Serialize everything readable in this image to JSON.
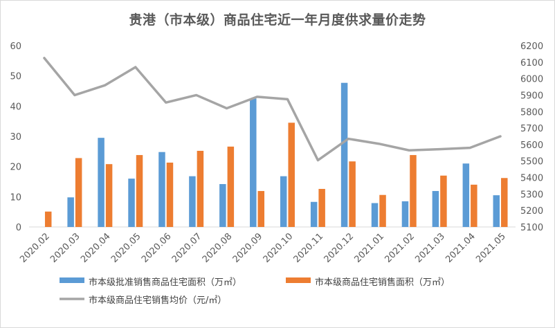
{
  "chart_data": {
    "type": "bar",
    "title": "贵港（市本级）商品住宅近一年月度供求量价走势",
    "categories": [
      "2020.02",
      "2020.03",
      "2020.04",
      "2020.05",
      "2020.06",
      "2020.07",
      "2020.08",
      "2020.09",
      "2020.10",
      "2020.11",
      "2020.12",
      "2021.01",
      "2021.02",
      "2021.03",
      "2021.04",
      "2021.05"
    ],
    "series": [
      {
        "name": "市本级批准销售商品住宅面积（万㎡）",
        "kind": "bar",
        "axis": "left",
        "color": "#5B9BD5",
        "values": [
          0,
          9.8,
          29.5,
          16,
          24.8,
          16.8,
          14.2,
          42.5,
          16.8,
          8.3,
          47.7,
          7.9,
          8.5,
          11.9,
          21,
          10.5
        ]
      },
      {
        "name": "市本级商品住宅销售面积（万㎡）",
        "kind": "bar",
        "axis": "left",
        "color": "#ED7D31",
        "values": [
          5.1,
          22.8,
          20.8,
          23.8,
          21.3,
          25.2,
          26.6,
          11.9,
          34.5,
          12.6,
          21.7,
          10.6,
          23.8,
          17,
          14,
          16.2
        ]
      },
      {
        "name": "市本级商品住宅销售均价（元/㎡）",
        "kind": "line",
        "axis": "right",
        "color": "#A5A5A5",
        "values": [
          6125,
          5900,
          5960,
          6070,
          5855,
          5900,
          5820,
          5890,
          5875,
          5505,
          5635,
          5605,
          5565,
          5572,
          5580,
          5650
        ]
      }
    ],
    "y_left": {
      "min": 0,
      "max": 60,
      "ticks": [
        0,
        10,
        20,
        30,
        40,
        50,
        60
      ]
    },
    "y_right": {
      "min": 5100,
      "max": 6200,
      "ticks": [
        5100,
        5200,
        5300,
        5400,
        5500,
        5600,
        5700,
        5800,
        5900,
        6000,
        6100,
        6200
      ]
    },
    "grid": false,
    "legend_position": "bottom"
  }
}
